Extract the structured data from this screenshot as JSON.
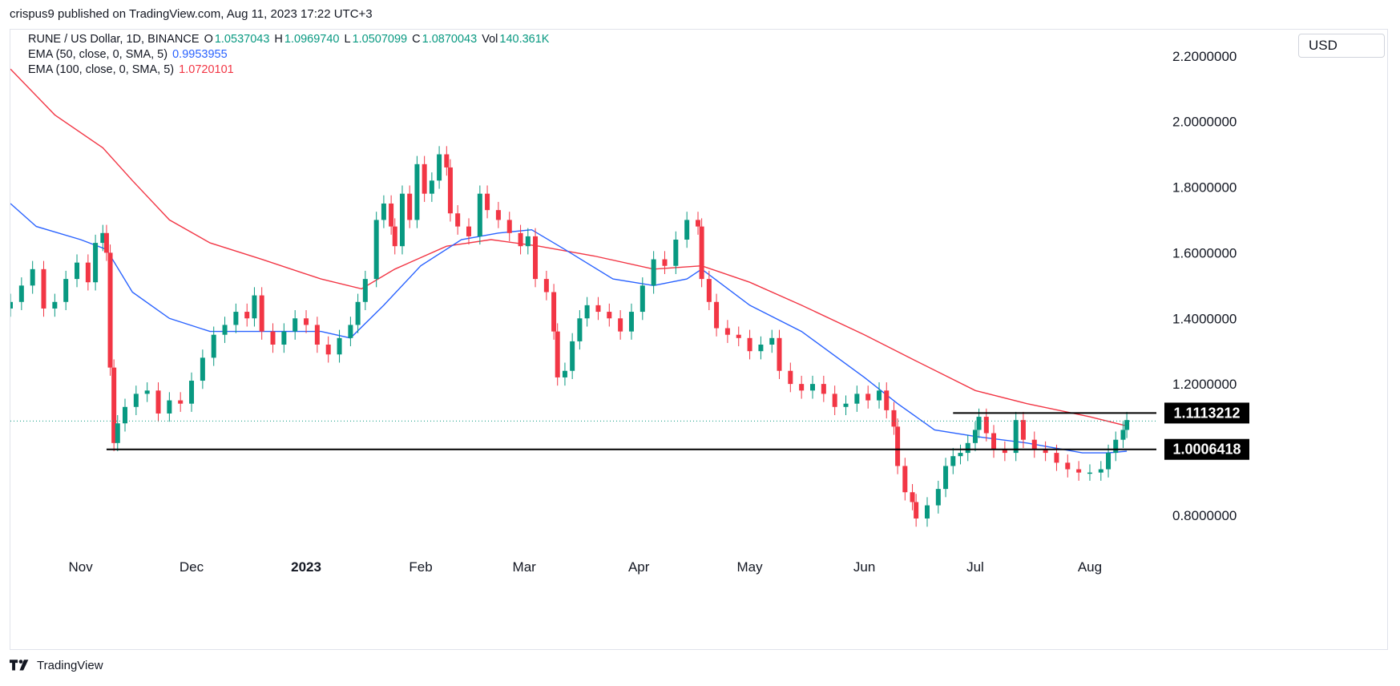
{
  "header": {
    "published_text": "crispus9 published on TradingView.com, Aug 11, 2023 17:22 UTC+3"
  },
  "legend": {
    "symbol": "RUNE / US Dollar, 1D, BINANCE",
    "open_label": "O",
    "open": "1.0537043",
    "high_label": "H",
    "high": "1.0969740",
    "low_label": "L",
    "low": "1.0507099",
    "close_label": "C",
    "close": "1.0870043",
    "vol_label": "Vol",
    "vol": "140.361K",
    "ema50_label": "EMA (50, close, 0, SMA, 5)",
    "ema50_value": "0.9953955",
    "ema100_label": "EMA (100, close, 0, SMA, 5)",
    "ema100_value": "1.0720101"
  },
  "currency": "USD",
  "branding": {
    "name": "TradingView"
  },
  "colors": {
    "up": "#089981",
    "down": "#f23645",
    "ema50": "#2962ff",
    "ema100": "#f23645",
    "level": "#000000"
  },
  "chart_data": {
    "type": "candlestick",
    "y_axis": {
      "ticks": [
        "2.2000000",
        "2.0000000",
        "1.8000000",
        "1.6000000",
        "1.4000000",
        "1.2000000",
        "1.0000000",
        "0.8000000"
      ],
      "tick_values": [
        2.2,
        2.0,
        1.8,
        1.6,
        1.4,
        1.2,
        1.0,
        0.8
      ],
      "range": [
        0.68,
        2.28
      ]
    },
    "x_axis": {
      "ticks": [
        "Nov",
        "Dec",
        "2023",
        "Feb",
        "Mar",
        "Apr",
        "May",
        "Jun",
        "Jul",
        "Aug"
      ],
      "tick_dates": [
        "2022-11-01",
        "2022-12-01",
        "2023-01-01",
        "2023-02-01",
        "2023-03-01",
        "2023-04-01",
        "2023-05-01",
        "2023-06-01",
        "2023-07-01",
        "2023-08-01"
      ],
      "range": [
        "2022-10-13",
        "2023-08-19"
      ]
    },
    "closes": [
      [
        "2022-10-13",
        1.45
      ],
      [
        "2022-10-16",
        1.5
      ],
      [
        "2022-10-19",
        1.55
      ],
      [
        "2022-10-22",
        1.43
      ],
      [
        "2022-10-25",
        1.45
      ],
      [
        "2022-10-28",
        1.52
      ],
      [
        "2022-10-31",
        1.57
      ],
      [
        "2022-11-03",
        1.51
      ],
      [
        "2022-11-05",
        1.63
      ],
      [
        "2022-11-07",
        1.66
      ],
      [
        "2022-11-08",
        1.6
      ],
      [
        "2022-11-09",
        1.25
      ],
      [
        "2022-11-10",
        1.02
      ],
      [
        "2022-11-11",
        1.08
      ],
      [
        "2022-11-13",
        1.13
      ],
      [
        "2022-11-16",
        1.17
      ],
      [
        "2022-11-19",
        1.18
      ],
      [
        "2022-11-22",
        1.11
      ],
      [
        "2022-11-25",
        1.15
      ],
      [
        "2022-11-28",
        1.14
      ],
      [
        "2022-12-01",
        1.21
      ],
      [
        "2022-12-04",
        1.28
      ],
      [
        "2022-12-07",
        1.35
      ],
      [
        "2022-12-10",
        1.38
      ],
      [
        "2022-12-13",
        1.42
      ],
      [
        "2022-12-16",
        1.4
      ],
      [
        "2022-12-18",
        1.47
      ],
      [
        "2022-12-20",
        1.36
      ],
      [
        "2022-12-23",
        1.32
      ],
      [
        "2022-12-26",
        1.36
      ],
      [
        "2022-12-29",
        1.4
      ],
      [
        "2023-01-01",
        1.38
      ],
      [
        "2023-01-04",
        1.32
      ],
      [
        "2023-01-07",
        1.29
      ],
      [
        "2023-01-10",
        1.34
      ],
      [
        "2023-01-13",
        1.38
      ],
      [
        "2023-01-15",
        1.45
      ],
      [
        "2023-01-17",
        1.52
      ],
      [
        "2023-01-20",
        1.7
      ],
      [
        "2023-01-22",
        1.75
      ],
      [
        "2023-01-24",
        1.68
      ],
      [
        "2023-01-25",
        1.62
      ],
      [
        "2023-01-27",
        1.78
      ],
      [
        "2023-01-29",
        1.7
      ],
      [
        "2023-01-31",
        1.87
      ],
      [
        "2023-02-02",
        1.78
      ],
      [
        "2023-02-04",
        1.82
      ],
      [
        "2023-02-06",
        1.9
      ],
      [
        "2023-02-08",
        1.86
      ],
      [
        "2023-02-09",
        1.72
      ],
      [
        "2023-02-11",
        1.68
      ],
      [
        "2023-02-14",
        1.65
      ],
      [
        "2023-02-17",
        1.78
      ],
      [
        "2023-02-19",
        1.73
      ],
      [
        "2023-02-22",
        1.7
      ],
      [
        "2023-02-25",
        1.66
      ],
      [
        "2023-02-28",
        1.62
      ],
      [
        "2023-03-02",
        1.65
      ],
      [
        "2023-03-04",
        1.52
      ],
      [
        "2023-03-07",
        1.48
      ],
      [
        "2023-03-09",
        1.36
      ],
      [
        "2023-03-10",
        1.22
      ],
      [
        "2023-03-12",
        1.24
      ],
      [
        "2023-03-14",
        1.33
      ],
      [
        "2023-03-16",
        1.4
      ],
      [
        "2023-03-18",
        1.44
      ],
      [
        "2023-03-21",
        1.42
      ],
      [
        "2023-03-24",
        1.4
      ],
      [
        "2023-03-27",
        1.36
      ],
      [
        "2023-03-30",
        1.42
      ],
      [
        "2023-04-02",
        1.5
      ],
      [
        "2023-04-05",
        1.58
      ],
      [
        "2023-04-08",
        1.56
      ],
      [
        "2023-04-11",
        1.64
      ],
      [
        "2023-04-14",
        1.7
      ],
      [
        "2023-04-17",
        1.68
      ],
      [
        "2023-04-18",
        1.52
      ],
      [
        "2023-04-20",
        1.45
      ],
      [
        "2023-04-22",
        1.37
      ],
      [
        "2023-04-25",
        1.35
      ],
      [
        "2023-04-28",
        1.34
      ],
      [
        "2023-05-01",
        1.3
      ],
      [
        "2023-05-04",
        1.32
      ],
      [
        "2023-05-07",
        1.34
      ],
      [
        "2023-05-09",
        1.24
      ],
      [
        "2023-05-12",
        1.2
      ],
      [
        "2023-05-15",
        1.18
      ],
      [
        "2023-05-18",
        1.2
      ],
      [
        "2023-05-21",
        1.17
      ],
      [
        "2023-05-24",
        1.13
      ],
      [
        "2023-05-27",
        1.14
      ],
      [
        "2023-05-30",
        1.17
      ],
      [
        "2023-06-02",
        1.15
      ],
      [
        "2023-06-05",
        1.18
      ],
      [
        "2023-06-07",
        1.12
      ],
      [
        "2023-06-09",
        1.07
      ],
      [
        "2023-06-10",
        0.95
      ],
      [
        "2023-06-12",
        0.87
      ],
      [
        "2023-06-14",
        0.84
      ],
      [
        "2023-06-15",
        0.79
      ],
      [
        "2023-06-18",
        0.83
      ],
      [
        "2023-06-21",
        0.88
      ],
      [
        "2023-06-23",
        0.95
      ],
      [
        "2023-06-25",
        0.98
      ],
      [
        "2023-06-27",
        0.99
      ],
      [
        "2023-06-29",
        1.02
      ],
      [
        "2023-07-01",
        1.06
      ],
      [
        "2023-07-02",
        1.1
      ],
      [
        "2023-07-04",
        1.05
      ],
      [
        "2023-07-06",
        1.0
      ],
      [
        "2023-07-09",
        0.99
      ],
      [
        "2023-07-12",
        1.09
      ],
      [
        "2023-07-14",
        1.03
      ],
      [
        "2023-07-17",
        1.0
      ],
      [
        "2023-07-20",
        0.99
      ],
      [
        "2023-07-23",
        0.96
      ],
      [
        "2023-07-26",
        0.94
      ],
      [
        "2023-07-29",
        0.93
      ],
      [
        "2023-08-01",
        0.93
      ],
      [
        "2023-08-04",
        0.94
      ],
      [
        "2023-08-06",
        0.99
      ],
      [
        "2023-08-08",
        1.03
      ],
      [
        "2023-08-10",
        1.06
      ],
      [
        "2023-08-11",
        1.09
      ]
    ],
    "ema50": [
      [
        "2022-10-13",
        1.75
      ],
      [
        "2022-10-20",
        1.68
      ],
      [
        "2022-11-01",
        1.64
      ],
      [
        "2022-11-08",
        1.61
      ],
      [
        "2022-11-15",
        1.48
      ],
      [
        "2022-11-25",
        1.4
      ],
      [
        "2022-12-06",
        1.36
      ],
      [
        "2022-12-20",
        1.36
      ],
      [
        "2023-01-05",
        1.36
      ],
      [
        "2023-01-13",
        1.34
      ],
      [
        "2023-01-22",
        1.44
      ],
      [
        "2023-02-01",
        1.56
      ],
      [
        "2023-02-12",
        1.64
      ],
      [
        "2023-02-22",
        1.66
      ],
      [
        "2023-03-03",
        1.67
      ],
      [
        "2023-03-12",
        1.61
      ],
      [
        "2023-03-25",
        1.52
      ],
      [
        "2023-04-05",
        1.5
      ],
      [
        "2023-04-14",
        1.52
      ],
      [
        "2023-04-18",
        1.55
      ],
      [
        "2023-05-01",
        1.44
      ],
      [
        "2023-05-15",
        1.36
      ],
      [
        "2023-06-01",
        1.22
      ],
      [
        "2023-06-10",
        1.14
      ],
      [
        "2023-06-20",
        1.06
      ],
      [
        "2023-07-01",
        1.04
      ],
      [
        "2023-07-15",
        1.02
      ],
      [
        "2023-07-30",
        0.99
      ],
      [
        "2023-08-06",
        0.99
      ],
      [
        "2023-08-11",
        0.995
      ]
    ],
    "ema100": [
      [
        "2022-10-13",
        2.16
      ],
      [
        "2022-10-25",
        2.02
      ],
      [
        "2022-11-07",
        1.92
      ],
      [
        "2022-11-15",
        1.82
      ],
      [
        "2022-11-25",
        1.7
      ],
      [
        "2022-12-06",
        1.63
      ],
      [
        "2022-12-20",
        1.58
      ],
      [
        "2023-01-05",
        1.52
      ],
      [
        "2023-01-16",
        1.49
      ],
      [
        "2023-01-25",
        1.55
      ],
      [
        "2023-02-08",
        1.62
      ],
      [
        "2023-02-20",
        1.64
      ],
      [
        "2023-03-05",
        1.62
      ],
      [
        "2023-03-20",
        1.59
      ],
      [
        "2023-04-05",
        1.55
      ],
      [
        "2023-04-18",
        1.56
      ],
      [
        "2023-05-01",
        1.51
      ],
      [
        "2023-05-15",
        1.44
      ],
      [
        "2023-06-01",
        1.35
      ],
      [
        "2023-06-15",
        1.27
      ],
      [
        "2023-07-01",
        1.18
      ],
      [
        "2023-07-15",
        1.14
      ],
      [
        "2023-08-01",
        1.1
      ],
      [
        "2023-08-11",
        1.072
      ]
    ],
    "levels": [
      {
        "value": 1.1113212,
        "label": "1.1113212",
        "from": "2023-06-25",
        "to": "2023-08-19"
      },
      {
        "value": 1.0006418,
        "label": "1.0006418",
        "from": "2022-11-08",
        "to": "2023-08-19"
      }
    ],
    "last_price": 1.087
  }
}
